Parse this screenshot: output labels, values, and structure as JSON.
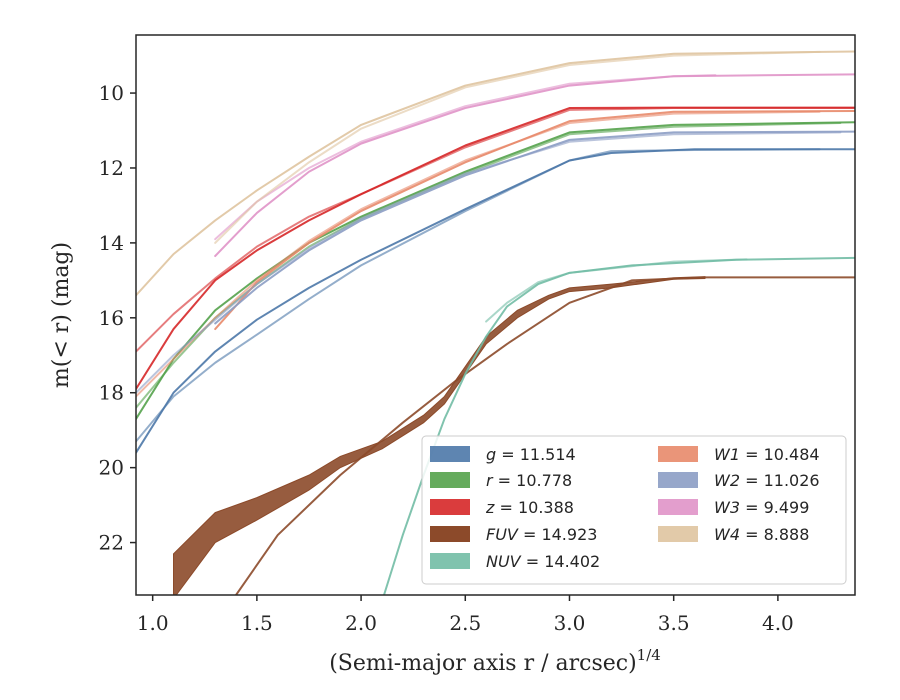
{
  "chart_data": {
    "type": "line",
    "title": "",
    "xlabel": "(Semi-major axis r / arcsec)",
    "xlabel_superscript": "1/4",
    "ylabel": "m(< r) (mag)",
    "xlim": [
      0.92,
      4.37
    ],
    "ylim": [
      23.4,
      8.45
    ],
    "y_inverted": true,
    "grid": false,
    "legend_position": "lower-right",
    "x_ticks": [
      1.0,
      1.5,
      2.0,
      2.5,
      3.0,
      3.5,
      4.0
    ],
    "x_tick_labels": [
      "1.0",
      "1.5",
      "2.0",
      "2.5",
      "3.0",
      "3.5",
      "4.0"
    ],
    "y_ticks": [
      10,
      12,
      14,
      16,
      18,
      20,
      22
    ],
    "y_tick_labels": [
      "10",
      "12",
      "14",
      "16",
      "18",
      "20",
      "22"
    ],
    "series": [
      {
        "name": "g = 11.514",
        "symbol": "g",
        "value": "11.514",
        "color": "#4c78a8",
        "lines": [
          [
            [
              0.92,
              19.6
            ],
            [
              1.1,
              18.0
            ],
            [
              1.3,
              16.9
            ],
            [
              1.5,
              16.05
            ],
            [
              1.75,
              15.2
            ],
            [
              2.0,
              14.45
            ],
            [
              2.5,
              13.1
            ],
            [
              3.0,
              11.8
            ],
            [
              3.2,
              11.6
            ],
            [
              3.6,
              11.5
            ],
            [
              4.37,
              11.5
            ]
          ],
          [
            [
              0.92,
              19.3
            ],
            [
              1.1,
              18.1
            ],
            [
              1.3,
              17.2
            ],
            [
              1.5,
              16.45
            ],
            [
              1.75,
              15.5
            ],
            [
              2.0,
              14.6
            ],
            [
              2.5,
              13.15
            ],
            [
              3.0,
              11.8
            ],
            [
              3.2,
              11.55
            ],
            [
              3.6,
              11.52
            ],
            [
              4.2,
              11.5
            ]
          ]
        ]
      },
      {
        "name": "r = 10.778",
        "symbol": "r",
        "value": "10.778",
        "color": "#54a24b",
        "lines": [
          [
            [
              0.92,
              18.7
            ],
            [
              1.1,
              17.1
            ],
            [
              1.3,
              15.8
            ],
            [
              1.5,
              14.95
            ],
            [
              1.75,
              14.0
            ],
            [
              2.0,
              13.3
            ],
            [
              2.5,
              12.1
            ],
            [
              3.0,
              11.05
            ],
            [
              3.5,
              10.85
            ],
            [
              4.37,
              10.78
            ]
          ],
          [
            [
              0.92,
              18.4
            ],
            [
              1.1,
              17.2
            ],
            [
              1.3,
              16.0
            ],
            [
              1.5,
              15.1
            ],
            [
              1.75,
              14.1
            ],
            [
              2.0,
              13.35
            ],
            [
              2.5,
              12.15
            ],
            [
              3.0,
              11.1
            ],
            [
              3.5,
              10.9
            ],
            [
              4.3,
              10.8
            ]
          ]
        ]
      },
      {
        "name": "z = 10.388",
        "symbol": "z",
        "value": "10.388",
        "color": "#d62728",
        "lines": [
          [
            [
              0.92,
              17.9
            ],
            [
              1.1,
              16.3
            ],
            [
              1.3,
              15.0
            ],
            [
              1.5,
              14.2
            ],
            [
              1.75,
              13.4
            ],
            [
              2.0,
              12.7
            ],
            [
              2.5,
              11.4
            ],
            [
              3.0,
              10.4
            ],
            [
              3.5,
              10.39
            ],
            [
              4.37,
              10.39
            ]
          ],
          [
            [
              0.92,
              16.9
            ],
            [
              1.1,
              15.9
            ],
            [
              1.3,
              14.95
            ],
            [
              1.5,
              14.1
            ],
            [
              1.75,
              13.3
            ],
            [
              2.0,
              12.7
            ],
            [
              2.5,
              11.45
            ],
            [
              3.0,
              10.45
            ],
            [
              3.5,
              10.4
            ],
            [
              4.37,
              10.4
            ]
          ]
        ]
      },
      {
        "name": "FUV = 14.923",
        "symbol": "FUV",
        "value": "14.923",
        "color": "#8c4a2a",
        "band": [
          [
            1.1,
            22.3,
            23.5
          ],
          [
            1.3,
            21.2,
            22.0
          ],
          [
            1.5,
            20.8,
            21.4
          ],
          [
            1.75,
            20.2,
            20.6
          ],
          [
            1.9,
            19.7,
            20.0
          ],
          [
            2.1,
            19.3,
            19.5
          ],
          [
            2.3,
            18.6,
            18.8
          ],
          [
            2.4,
            18.1,
            18.3
          ],
          [
            2.5,
            17.3,
            17.5
          ],
          [
            2.6,
            16.5,
            16.7
          ],
          [
            2.75,
            15.8,
            16.0
          ],
          [
            2.9,
            15.4,
            15.5
          ],
          [
            3.0,
            15.2,
            15.3
          ],
          [
            3.2,
            15.1,
            15.2
          ],
          [
            3.5,
            14.93,
            14.97
          ],
          [
            3.65,
            14.9,
            14.95
          ]
        ],
        "lines": [
          [
            [
              1.4,
              23.4
            ],
            [
              1.6,
              21.8
            ],
            [
              1.9,
              20.2
            ],
            [
              2.2,
              18.8
            ],
            [
              2.45,
              17.7
            ],
            [
              2.7,
              16.7
            ],
            [
              3.0,
              15.6
            ],
            [
              3.3,
              15.0
            ],
            [
              3.65,
              14.92
            ],
            [
              4.37,
              14.92
            ]
          ]
        ]
      },
      {
        "name": "NUV = 14.402",
        "symbol": "NUV",
        "value": "14.402",
        "color": "#72bca5",
        "lines": [
          [
            [
              2.11,
              23.4
            ],
            [
              2.2,
              21.8
            ],
            [
              2.3,
              20.2
            ],
            [
              2.4,
              18.7
            ],
            [
              2.5,
              17.5
            ],
            [
              2.6,
              16.5
            ],
            [
              2.7,
              15.7
            ],
            [
              2.85,
              15.1
            ],
            [
              3.0,
              14.8
            ],
            [
              3.3,
              14.6
            ],
            [
              3.8,
              14.45
            ],
            [
              4.37,
              14.4
            ]
          ],
          [
            [
              2.6,
              16.1
            ],
            [
              2.7,
              15.6
            ],
            [
              2.85,
              15.05
            ],
            [
              3.0,
              14.8
            ],
            [
              3.5,
              14.5
            ],
            [
              3.85,
              14.44
            ]
          ]
        ]
      },
      {
        "name": "W1 = 10.484",
        "symbol": "W1",
        "value": "10.484",
        "color": "#e8896a",
        "lines": [
          [
            [
              1.3,
              16.3
            ],
            [
              1.5,
              15.05
            ],
            [
              1.75,
              14.0
            ],
            [
              2.0,
              13.15
            ],
            [
              2.5,
              11.85
            ],
            [
              3.0,
              10.75
            ],
            [
              3.5,
              10.5
            ],
            [
              4.37,
              10.48
            ]
          ],
          [
            [
              0.92,
              18.1
            ],
            [
              1.1,
              17.1
            ],
            [
              1.3,
              16.0
            ],
            [
              1.5,
              15.0
            ],
            [
              1.75,
              13.95
            ],
            [
              2.0,
              13.1
            ],
            [
              2.5,
              11.8
            ],
            [
              3.0,
              10.8
            ],
            [
              3.5,
              10.55
            ],
            [
              4.2,
              10.5
            ]
          ]
        ]
      },
      {
        "name": "W2 = 11.026",
        "symbol": "W2",
        "value": "11.026",
        "color": "#8c9dc4",
        "lines": [
          [
            [
              1.3,
              16.15
            ],
            [
              1.5,
              15.2
            ],
            [
              1.75,
              14.2
            ],
            [
              2.0,
              13.4
            ],
            [
              2.5,
              12.2
            ],
            [
              3.0,
              11.25
            ],
            [
              3.5,
              11.05
            ],
            [
              4.37,
              11.03
            ]
          ],
          [
            [
              0.92,
              18.0
            ],
            [
              1.1,
              17.0
            ],
            [
              1.3,
              16.05
            ],
            [
              1.5,
              15.1
            ],
            [
              1.75,
              14.15
            ],
            [
              2.0,
              13.35
            ],
            [
              2.5,
              12.15
            ],
            [
              3.0,
              11.3
            ],
            [
              3.5,
              11.1
            ],
            [
              4.3,
              11.05
            ]
          ]
        ]
      },
      {
        "name": "W3 = 9.499",
        "symbol": "W3",
        "value": "9.499",
        "color": "#e093c8",
        "lines": [
          [
            [
              1.3,
              14.35
            ],
            [
              1.5,
              13.2
            ],
            [
              1.75,
              12.1
            ],
            [
              2.0,
              11.35
            ],
            [
              2.5,
              10.4
            ],
            [
              3.0,
              9.8
            ],
            [
              3.5,
              9.55
            ],
            [
              4.37,
              9.5
            ]
          ],
          [
            [
              1.3,
              13.9
            ],
            [
              1.5,
              12.9
            ],
            [
              1.75,
              12.0
            ],
            [
              2.0,
              11.3
            ],
            [
              2.5,
              10.35
            ],
            [
              3.0,
              9.75
            ],
            [
              3.5,
              9.55
            ],
            [
              3.7,
              9.52
            ]
          ]
        ]
      },
      {
        "name": "W4 = 8.888",
        "symbol": "W4",
        "value": "8.888",
        "color": "#dfc4a0",
        "lines": [
          [
            [
              0.92,
              15.4
            ],
            [
              1.1,
              14.3
            ],
            [
              1.3,
              13.4
            ],
            [
              1.5,
              12.6
            ],
            [
              1.75,
              11.7
            ],
            [
              2.0,
              10.85
            ],
            [
              2.5,
              9.8
            ],
            [
              3.0,
              9.2
            ],
            [
              3.5,
              8.95
            ],
            [
              4.37,
              8.89
            ]
          ],
          [
            [
              1.3,
              14.0
            ],
            [
              1.5,
              12.9
            ],
            [
              1.75,
              11.85
            ],
            [
              2.0,
              10.95
            ],
            [
              2.5,
              9.85
            ],
            [
              3.0,
              9.25
            ],
            [
              3.5,
              9.0
            ],
            [
              4.2,
              8.9
            ]
          ]
        ]
      }
    ]
  }
}
